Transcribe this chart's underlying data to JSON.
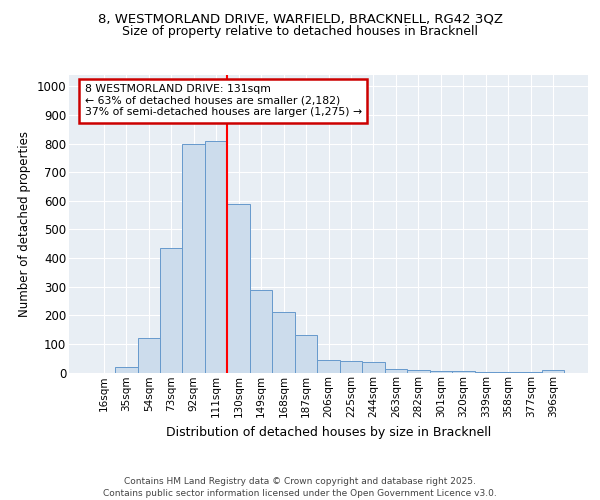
{
  "title_line1": "8, WESTMORLAND DRIVE, WARFIELD, BRACKNELL, RG42 3QZ",
  "title_line2": "Size of property relative to detached houses in Bracknell",
  "xlabel": "Distribution of detached houses by size in Bracknell",
  "ylabel": "Number of detached properties",
  "bin_labels": [
    "16sqm",
    "35sqm",
    "54sqm",
    "73sqm",
    "92sqm",
    "111sqm",
    "130sqm",
    "149sqm",
    "168sqm",
    "187sqm",
    "206sqm",
    "225sqm",
    "244sqm",
    "263sqm",
    "282sqm",
    "301sqm",
    "320sqm",
    "339sqm",
    "358sqm",
    "377sqm",
    "396sqm"
  ],
  "bar_heights": [
    0,
    18,
    120,
    435,
    800,
    810,
    590,
    290,
    213,
    130,
    45,
    40,
    38,
    12,
    8,
    5,
    4,
    3,
    2,
    1,
    7
  ],
  "bar_color": "#ccdcec",
  "bar_edge_color": "#6699cc",
  "red_line_bin_index": 6,
  "annotation_text": "8 WESTMORLAND DRIVE: 131sqm\n← 63% of detached houses are smaller (2,182)\n37% of semi-detached houses are larger (1,275) →",
  "annotation_box_color": "#ffffff",
  "annotation_box_edge": "#cc0000",
  "ylim": [
    0,
    1040
  ],
  "yticks": [
    0,
    100,
    200,
    300,
    400,
    500,
    600,
    700,
    800,
    900,
    1000
  ],
  "footer_text": "Contains HM Land Registry data © Crown copyright and database right 2025.\nContains public sector information licensed under the Open Government Licence v3.0.",
  "fig_bg_color": "#ffffff",
  "plot_bg_color": "#e8eef4"
}
